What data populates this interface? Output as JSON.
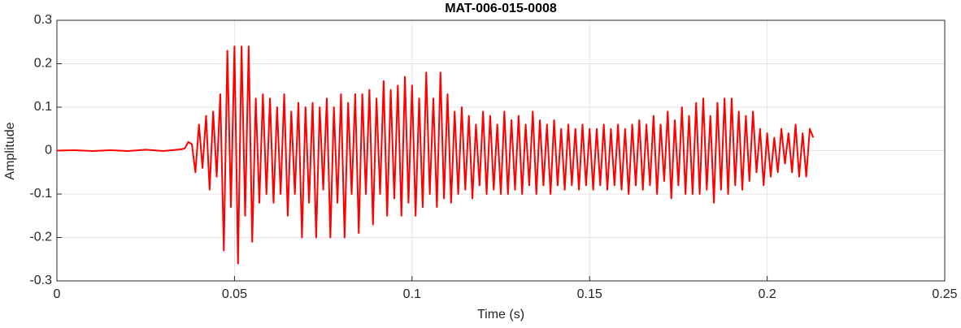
{
  "chart_data": {
    "type": "line",
    "title": "MAT-006-015-0008",
    "x_label": "Time (s)",
    "y_label": "Amplitude",
    "xlim": [
      0,
      0.25
    ],
    "xticks": [
      0,
      0.05,
      0.1,
      0.15,
      0.2,
      0.25
    ],
    "ylim": [
      -0.3,
      0.3
    ],
    "yticks": [
      -0.3,
      -0.2,
      -0.1,
      0,
      0.1,
      0.2,
      0.3
    ],
    "grid": true,
    "x": [
      0,
      0.005,
      0.01,
      0.015,
      0.02,
      0.025,
      0.03,
      0.035,
      0.036,
      0.037,
      0.038,
      0.039,
      0.04,
      0.041,
      0.042,
      0.043,
      0.044,
      0.045,
      0.046,
      0.047,
      0.048,
      0.049,
      0.05,
      0.051,
      0.052,
      0.053,
      0.054,
      0.055,
      0.056,
      0.057,
      0.058,
      0.059,
      0.06,
      0.061,
      0.062,
      0.063,
      0.064,
      0.065,
      0.066,
      0.067,
      0.068,
      0.069,
      0.07,
      0.071,
      0.072,
      0.073,
      0.074,
      0.075,
      0.076,
      0.077,
      0.078,
      0.079,
      0.08,
      0.081,
      0.082,
      0.083,
      0.084,
      0.085,
      0.086,
      0.087,
      0.088,
      0.089,
      0.09,
      0.091,
      0.092,
      0.093,
      0.094,
      0.095,
      0.096,
      0.097,
      0.098,
      0.099,
      0.1,
      0.101,
      0.102,
      0.103,
      0.104,
      0.105,
      0.106,
      0.107,
      0.108,
      0.109,
      0.11,
      0.111,
      0.112,
      0.113,
      0.114,
      0.115,
      0.116,
      0.117,
      0.118,
      0.119,
      0.12,
      0.121,
      0.122,
      0.123,
      0.124,
      0.125,
      0.126,
      0.127,
      0.128,
      0.129,
      0.13,
      0.131,
      0.132,
      0.133,
      0.134,
      0.135,
      0.136,
      0.137,
      0.138,
      0.139,
      0.14,
      0.141,
      0.142,
      0.143,
      0.144,
      0.145,
      0.146,
      0.147,
      0.148,
      0.149,
      0.15,
      0.151,
      0.152,
      0.153,
      0.154,
      0.155,
      0.156,
      0.157,
      0.158,
      0.159,
      0.16,
      0.161,
      0.162,
      0.163,
      0.164,
      0.165,
      0.166,
      0.167,
      0.168,
      0.169,
      0.17,
      0.171,
      0.172,
      0.173,
      0.174,
      0.175,
      0.176,
      0.177,
      0.178,
      0.179,
      0.18,
      0.181,
      0.182,
      0.183,
      0.184,
      0.185,
      0.186,
      0.187,
      0.188,
      0.189,
      0.19,
      0.191,
      0.192,
      0.193,
      0.194,
      0.195,
      0.196,
      0.197,
      0.198,
      0.199,
      0.2,
      0.201,
      0.202,
      0.203,
      0.204,
      0.205,
      0.206,
      0.207,
      0.208,
      0.209,
      0.21,
      0.211,
      0.212,
      0.213
    ],
    "series": [
      {
        "color": "#ff0000",
        "values": [
          0,
          0.001,
          -0.001,
          0.001,
          -0.001,
          0.002,
          -0.001,
          0.003,
          0.005,
          0.02,
          0.015,
          -0.05,
          0.06,
          -0.04,
          0.08,
          -0.09,
          0.09,
          -0.06,
          0.13,
          -0.23,
          0.23,
          -0.13,
          0.24,
          -0.26,
          0.24,
          -0.15,
          0.24,
          -0.21,
          0.12,
          -0.12,
          0.13,
          -0.1,
          0.12,
          -0.12,
          0.1,
          -0.1,
          0.13,
          -0.15,
          0.09,
          -0.1,
          0.11,
          -0.2,
          0.1,
          -0.12,
          0.11,
          -0.2,
          0.1,
          -0.09,
          0.12,
          -0.2,
          0.1,
          -0.12,
          0.13,
          -0.2,
          0.11,
          -0.1,
          0.13,
          -0.19,
          0.13,
          -0.1,
          0.14,
          -0.17,
          0.12,
          -0.1,
          0.16,
          -0.15,
          0.14,
          -0.11,
          0.15,
          -0.15,
          0.17,
          -0.12,
          0.15,
          -0.15,
          0.12,
          -0.13,
          0.18,
          -0.1,
          0.12,
          -0.13,
          0.18,
          -0.11,
          0.13,
          -0.12,
          0.09,
          -0.1,
          0.1,
          -0.09,
          0.08,
          -0.11,
          0.06,
          -0.08,
          0.09,
          -0.1,
          0.08,
          -0.09,
          0.06,
          -0.1,
          0.09,
          -0.1,
          0.07,
          -0.09,
          0.08,
          -0.1,
          0.06,
          -0.08,
          0.09,
          -0.1,
          0.07,
          -0.08,
          0.06,
          -0.1,
          0.07,
          -0.08,
          0.05,
          -0.09,
          0.06,
          -0.08,
          0.05,
          -0.09,
          0.06,
          -0.08,
          0.05,
          -0.09,
          0.05,
          -0.08,
          0.06,
          -0.09,
          0.05,
          -0.08,
          0.06,
          -0.09,
          0.05,
          -0.1,
          0.06,
          -0.08,
          0.07,
          -0.09,
          0.06,
          -0.08,
          0.08,
          -0.1,
          0.06,
          -0.07,
          0.09,
          -0.11,
          0.07,
          -0.08,
          0.1,
          -0.1,
          0.08,
          -0.1,
          0.11,
          -0.1,
          0.12,
          -0.09,
          0.08,
          -0.12,
          0.11,
          -0.09,
          0.12,
          -0.1,
          0.12,
          -0.08,
          0.09,
          -0.09,
          0.08,
          -0.07,
          0.09,
          -0.05,
          0.05,
          -0.08,
          0.04,
          -0.06,
          0.03,
          -0.05,
          0.05,
          -0.03,
          0.04,
          -0.05,
          0.06,
          -0.06,
          0.04,
          -0.06,
          0.05,
          0.03
        ]
      }
    ]
  }
}
